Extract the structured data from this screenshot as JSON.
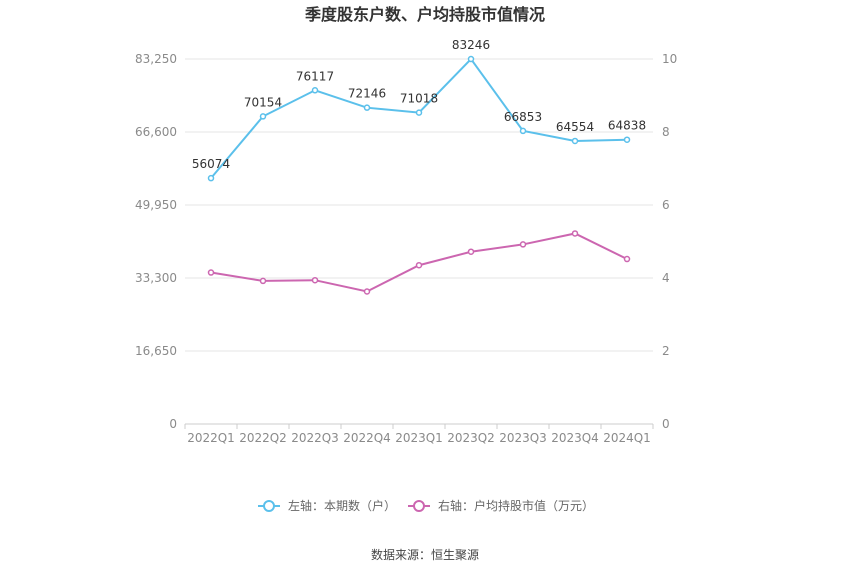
{
  "chart_data": {
    "type": "line",
    "title": "季度股东户数、户均持股市值情况",
    "categories": [
      "2022Q1",
      "2022Q2",
      "2022Q3",
      "2022Q4",
      "2023Q1",
      "2023Q2",
      "2023Q3",
      "2023Q4",
      "2024Q1"
    ],
    "left_axis": {
      "ticks": [
        "0",
        "16,650",
        "33,300",
        "49,950",
        "66,600",
        "83,250"
      ],
      "ylim": [
        0,
        83250
      ]
    },
    "right_axis": {
      "ticks": [
        "0",
        "2",
        "4",
        "6",
        "8",
        "10"
      ],
      "ylim": [
        0,
        10
      ]
    },
    "series": [
      {
        "name": "左轴：本期数（户）",
        "axis": "left",
        "color": "#5bc0eb",
        "values": [
          56074,
          70154,
          76117,
          72146,
          71018,
          83246,
          66853,
          64554,
          64838
        ],
        "labels": [
          "56074",
          "70154",
          "76117",
          "72146",
          "71018",
          "83246",
          "66853",
          "64554",
          "64838"
        ]
      },
      {
        "name": "右轴：户均持股市值（万元）",
        "axis": "right",
        "color": "#cc66b0",
        "values": [
          4.15,
          3.92,
          3.94,
          3.63,
          4.35,
          4.72,
          4.92,
          5.22,
          4.52
        ]
      }
    ],
    "grid": true,
    "legend_position": "bottom"
  },
  "source_text": "数据来源：恒生聚源"
}
